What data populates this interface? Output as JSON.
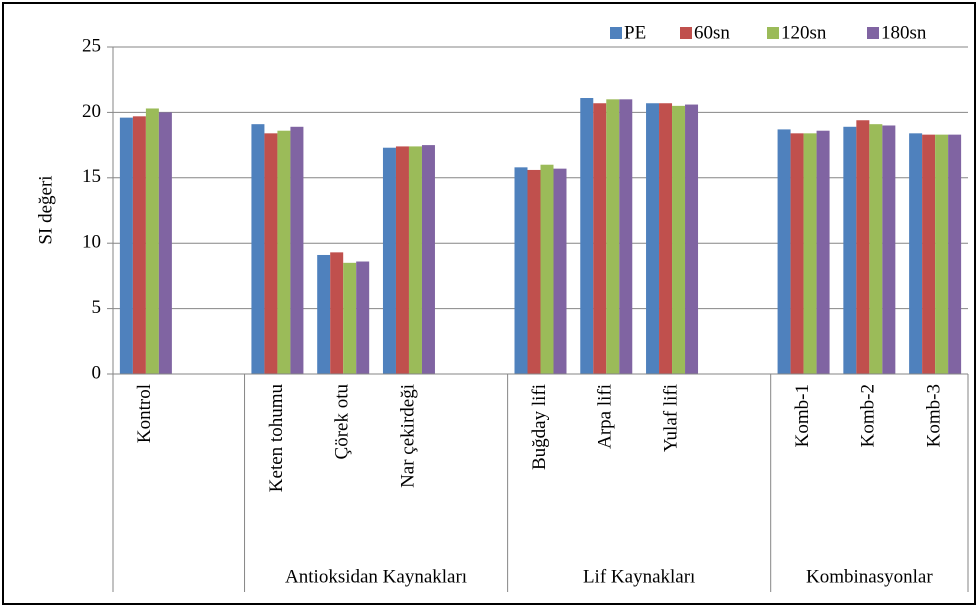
{
  "chart_data": {
    "type": "bar",
    "y_label": "SI değeri",
    "categories": [
      "Kontrol",
      null,
      "Keten tohumu",
      "Çörek otu",
      "Nar çekirdeği",
      null,
      "Buğday lifi",
      "Arpa lifi",
      "Yulaf lifi",
      null,
      "Komb-1",
      "Komb-2",
      "Komb-3"
    ],
    "groups": [
      {
        "label": "Antioksidan Kaynakları",
        "span": [
          2,
          5
        ]
      },
      {
        "label": "Lif Kaynakları",
        "span": [
          6,
          9
        ]
      },
      {
        "label": "Kombinasyonlar",
        "span": [
          10,
          12
        ]
      }
    ],
    "series": [
      {
        "name": "PE",
        "color": "#4f81bd",
        "values": [
          19.6,
          null,
          19.1,
          9.1,
          17.3,
          null,
          15.8,
          21.1,
          20.7,
          null,
          18.7,
          18.9,
          18.4
        ]
      },
      {
        "name": "60sn",
        "color": "#c0504d",
        "values": [
          19.7,
          null,
          18.4,
          9.3,
          17.4,
          null,
          15.6,
          20.7,
          20.7,
          null,
          18.4,
          19.4,
          18.3
        ]
      },
      {
        "name": "120sn",
        "color": "#9bbb59",
        "values": [
          20.3,
          null,
          18.6,
          8.5,
          17.4,
          null,
          16.0,
          21.0,
          20.5,
          null,
          18.4,
          19.1,
          18.3
        ]
      },
      {
        "name": "180sn",
        "color": "#8064a2",
        "values": [
          20.0,
          null,
          18.9,
          8.6,
          17.5,
          null,
          15.7,
          21.0,
          20.6,
          null,
          18.6,
          19.0,
          18.3
        ]
      }
    ],
    "ylim": [
      0,
      25
    ],
    "yticks": [
      0,
      5,
      10,
      15,
      20,
      25
    ],
    "grid": true,
    "legend": "top-right"
  }
}
